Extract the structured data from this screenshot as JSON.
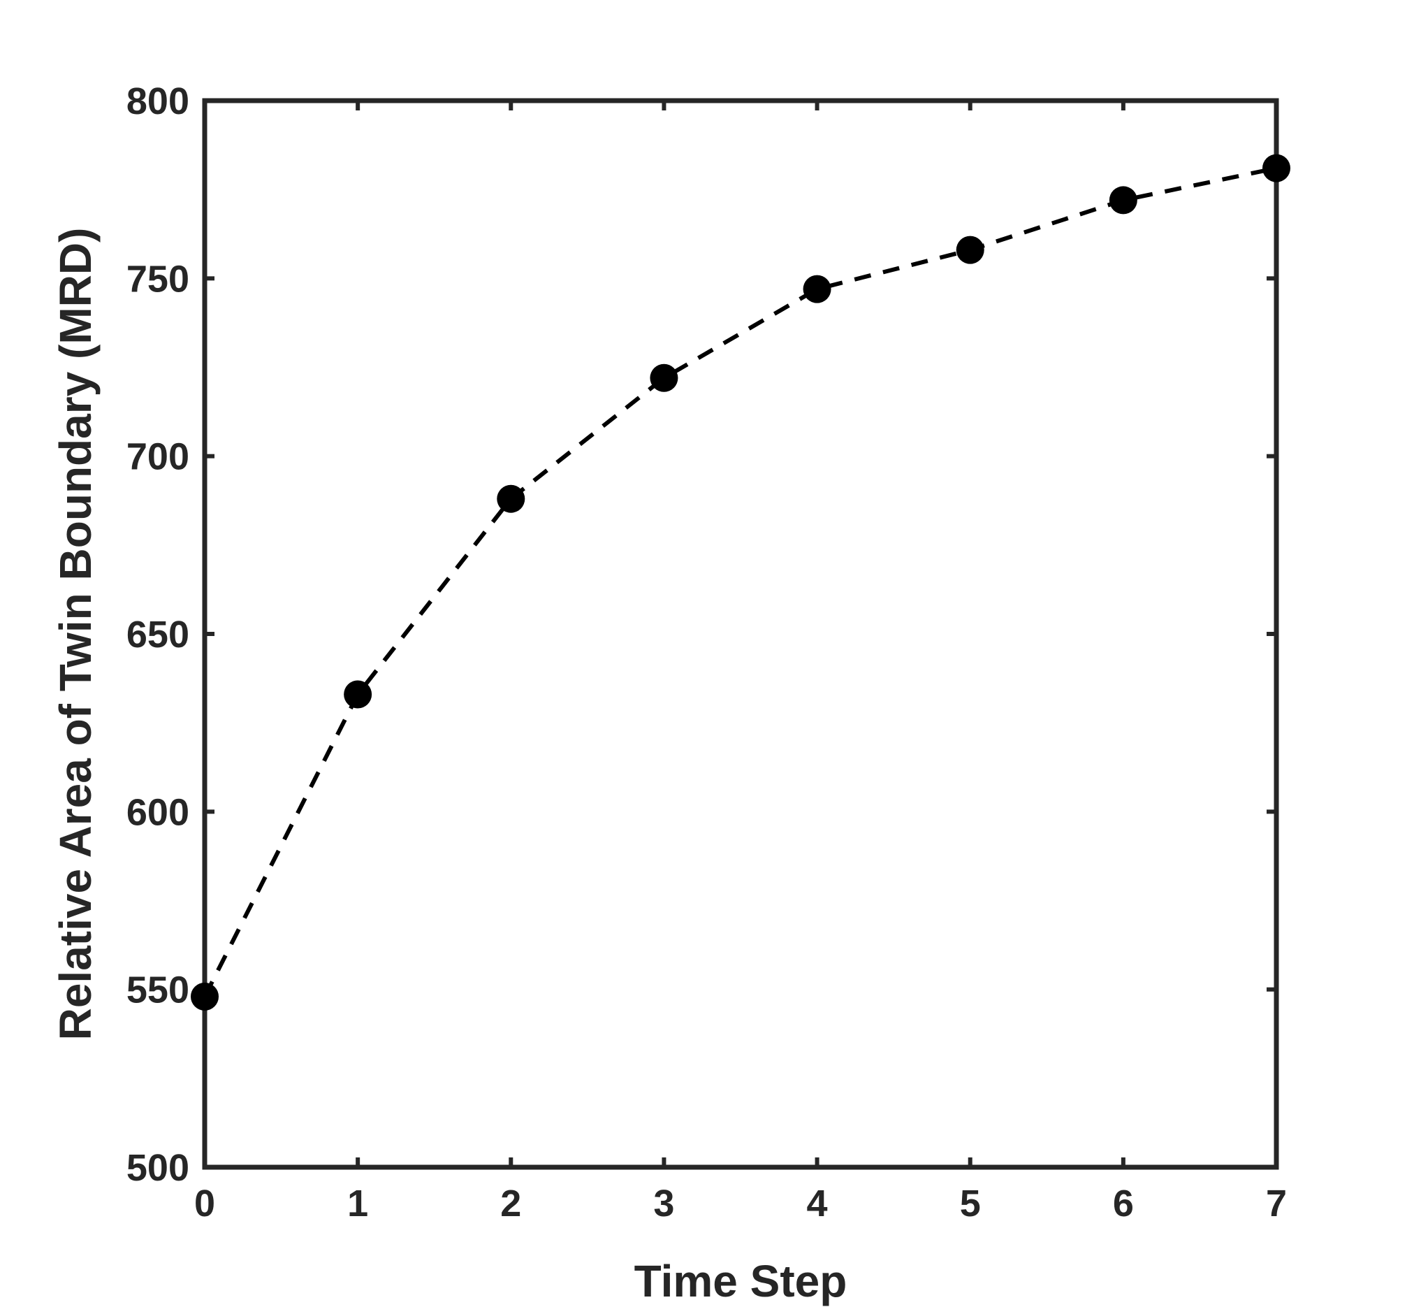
{
  "chart_data": {
    "type": "line",
    "title": "",
    "xlabel": "Time Step",
    "ylabel": "Relative Area of Twin Boundary (MRD)",
    "xlim": [
      0,
      7
    ],
    "ylim": [
      500,
      800
    ],
    "xticks": [
      "0",
      "1",
      "2",
      "3",
      "4",
      "5",
      "6",
      "7"
    ],
    "yticks": [
      "500",
      "550",
      "600",
      "650",
      "700",
      "750",
      "800"
    ],
    "grid": false,
    "line_style": "dashed",
    "marker": "filled-circle",
    "color": "#000000",
    "axis_color": "#262626",
    "x": [
      0,
      1,
      2,
      3,
      4,
      5,
      6,
      7
    ],
    "y": [
      548,
      633,
      688,
      722,
      747,
      758,
      772,
      781
    ]
  }
}
